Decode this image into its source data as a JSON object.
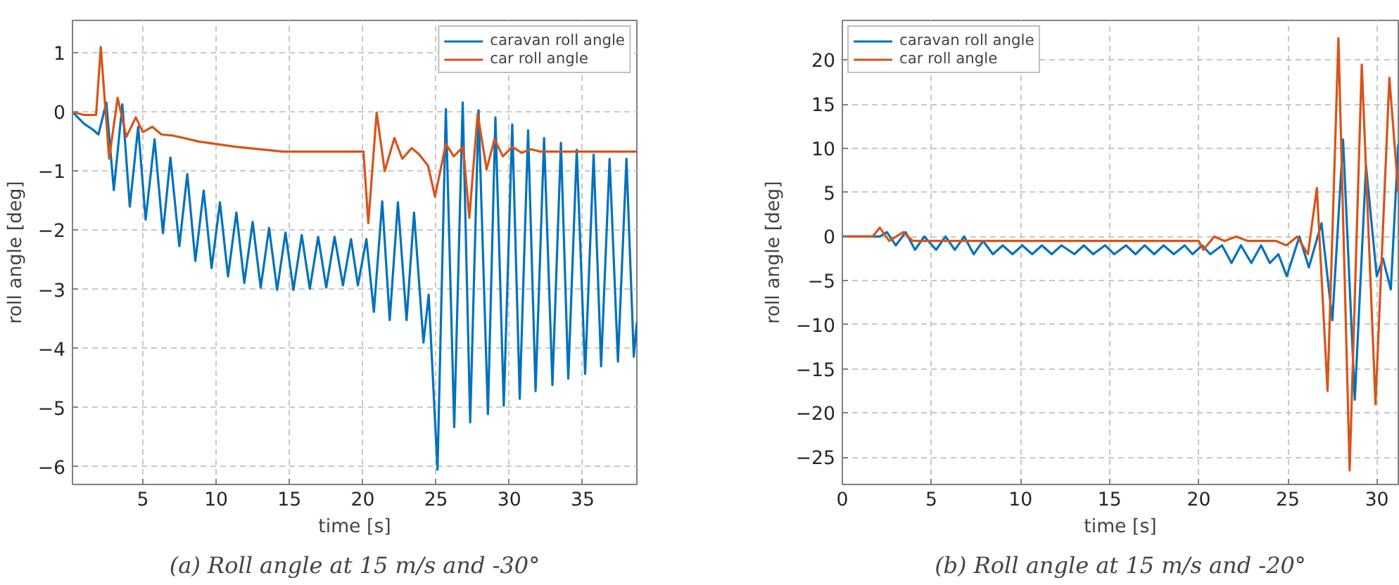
{
  "chart_data": [
    {
      "type": "line",
      "title": "(a) Roll angle at 15 m/s and -30°",
      "xlabel": "time [s]",
      "ylabel": "roll angle [deg]",
      "xlim": [
        0.2,
        38.7
      ],
      "ylim": [
        -6.3,
        1.55
      ],
      "xticks": [
        5,
        10,
        15,
        20,
        25,
        30,
        35
      ],
      "yticks": [
        -6,
        -5,
        -4,
        -3,
        -2,
        -1,
        0,
        1
      ],
      "grid": true,
      "legend": "top right",
      "line_style": "solid",
      "series": [
        {
          "name": "caravan roll angle",
          "color": "#0072bd",
          "x": [
            0.2,
            1.0,
            1.6,
            1.97,
            2.51,
            3.02,
            3.6,
            4.11,
            4.68,
            5.19,
            5.8,
            6.37,
            6.88,
            7.49,
            8.03,
            8.58,
            9.15,
            9.69,
            10.26,
            10.81,
            11.38,
            11.92,
            12.49,
            13.04,
            13.61,
            14.16,
            14.73,
            15.27,
            15.84,
            16.39,
            16.96,
            17.51,
            18.08,
            18.65,
            19.2,
            19.67,
            20.25,
            20.76,
            21.33,
            21.84,
            22.4,
            22.99,
            23.5,
            24.14,
            24.5,
            25.1,
            25.67,
            26.24,
            26.82,
            27.33,
            27.9,
            28.54,
            29.05,
            29.62,
            30.2,
            30.71,
            31.28,
            31.79,
            32.37,
            32.94,
            33.52,
            34.02,
            34.6,
            35.17,
            35.75,
            36.26,
            36.84,
            37.41,
            37.99,
            38.49,
            38.7
          ],
          "values": [
            0,
            -0.2,
            -0.3,
            -0.38,
            0.16,
            -1.32,
            0.13,
            -1.6,
            -0.25,
            -1.82,
            -0.46,
            -2.05,
            -0.77,
            -2.27,
            -1.05,
            -2.52,
            -1.33,
            -2.64,
            -1.53,
            -2.78,
            -1.7,
            -2.89,
            -1.86,
            -2.97,
            -1.96,
            -3.01,
            -2.04,
            -3.01,
            -2.08,
            -2.99,
            -2.11,
            -2.97,
            -2.11,
            -2.93,
            -2.15,
            -2.93,
            -2.15,
            -3.38,
            -1.51,
            -3.52,
            -1.53,
            -3.52,
            -1.7,
            -3.9,
            -3.09,
            -6.05,
            0.05,
            -5.33,
            0.16,
            -5.25,
            0.03,
            -5.11,
            -0.09,
            -4.97,
            -0.21,
            -4.85,
            -0.31,
            -4.72,
            -0.44,
            -4.62,
            -0.52,
            -4.51,
            -0.64,
            -4.43,
            -0.72,
            -4.3,
            -0.79,
            -4.22,
            -0.79,
            -4.14,
            -3.55
          ]
        },
        {
          "name": "car roll angle",
          "color": "#d95319",
          "x": [
            0.2,
            1.0,
            1.81,
            2.13,
            2.7,
            3.28,
            3.88,
            4.52,
            5.0,
            5.64,
            6.27,
            7.08,
            8.83,
            11.38,
            14.57,
            20.05,
            20.38,
            20.95,
            21.5,
            22.16,
            22.7,
            23.34,
            23.82,
            24.46,
            24.93,
            25.67,
            26.21,
            26.85,
            27.27,
            27.84,
            28.45,
            28.99,
            29.56,
            30.2,
            30.84,
            31.48,
            32.11,
            38.7
          ],
          "values": [
            0,
            -0.05,
            -0.05,
            1.1,
            -0.79,
            0.24,
            -0.42,
            -0.09,
            -0.34,
            -0.25,
            -0.38,
            -0.4,
            -0.5,
            -0.59,
            -0.67,
            -0.67,
            -1.88,
            -0.01,
            -1.0,
            -0.44,
            -0.79,
            -0.61,
            -0.71,
            -0.91,
            -1.43,
            -0.54,
            -0.75,
            -0.59,
            -1.79,
            -0.03,
            -0.97,
            -0.46,
            -0.75,
            -0.59,
            -0.69,
            -0.63,
            -0.67,
            -0.67
          ]
        }
      ]
    },
    {
      "type": "line",
      "title": "(b) Roll angle at 15 m/s and -20°",
      "xlabel": "time [s]",
      "ylabel": "roll angle [deg]",
      "xlim": [
        0,
        31.2
      ],
      "ylim": [
        -28.1,
        24.5
      ],
      "xticks": [
        0,
        5,
        10,
        15,
        20,
        25,
        30
      ],
      "yticks": [
        -25,
        -20,
        -15,
        -10,
        -5,
        0,
        5,
        10,
        15,
        20
      ],
      "grid": true,
      "legend": "top left",
      "line_style": "solid",
      "series": [
        {
          "name": "caravan roll angle",
          "color": "#0072bd",
          "x": [
            0,
            1.7,
            2.1,
            2.5,
            3.0,
            3.55,
            4.08,
            4.6,
            5.26,
            5.79,
            6.31,
            6.84,
            7.37,
            7.9,
            8.45,
            9.0,
            9.55,
            10.1,
            10.65,
            11.2,
            11.75,
            12.3,
            13.02,
            13.55,
            14.08,
            14.74,
            15.26,
            15.92,
            16.45,
            16.97,
            17.5,
            18.03,
            18.6,
            19.21,
            19.65,
            20.2,
            20.65,
            21.31,
            21.84,
            22.37,
            22.95,
            23.5,
            23.99,
            24.47,
            24.94,
            25.65,
            26.18,
            26.89,
            27.5,
            28.1,
            28.76,
            29.39,
            29.99,
            30.34,
            30.78,
            31.2
          ],
          "values": [
            0,
            0,
            0,
            0.5,
            -1,
            0.5,
            -1.5,
            0,
            -1.5,
            0,
            -1.5,
            0,
            -2,
            -0.5,
            -2,
            -1,
            -2,
            -1,
            -2,
            -1,
            -2,
            -1,
            -2,
            -1,
            -2,
            -1,
            -2,
            -1,
            -2,
            -1,
            -2,
            -1,
            -2,
            -1,
            -2,
            -1,
            -2,
            -1,
            -3,
            -1,
            -3,
            -1,
            -3,
            -2,
            -4.5,
            0,
            -3.5,
            1.5,
            -9.5,
            11,
            -18.5,
            8,
            -4.5,
            -2.5,
            -6,
            10.5
          ]
        },
        {
          "name": "car roll angle",
          "color": "#d95319",
          "x": [
            0,
            1.7,
            2.1,
            2.63,
            3.42,
            3.95,
            5.0,
            10.0,
            20.0,
            20.26,
            20.87,
            21.45,
            22.1,
            22.76,
            24.34,
            24.92,
            25.52,
            26.13,
            26.63,
            27.23,
            27.84,
            28.47,
            29.15,
            29.92,
            30.7,
            31.2
          ],
          "values": [
            0,
            0,
            1,
            -0.5,
            0.5,
            -0.5,
            -0.5,
            -0.5,
            -0.5,
            -1.5,
            0,
            -0.5,
            0,
            -0.5,
            -0.5,
            -1,
            0,
            -2,
            5.5,
            -17.5,
            22.5,
            -26.5,
            19.5,
            -19,
            18,
            5
          ]
        }
      ]
    }
  ]
}
